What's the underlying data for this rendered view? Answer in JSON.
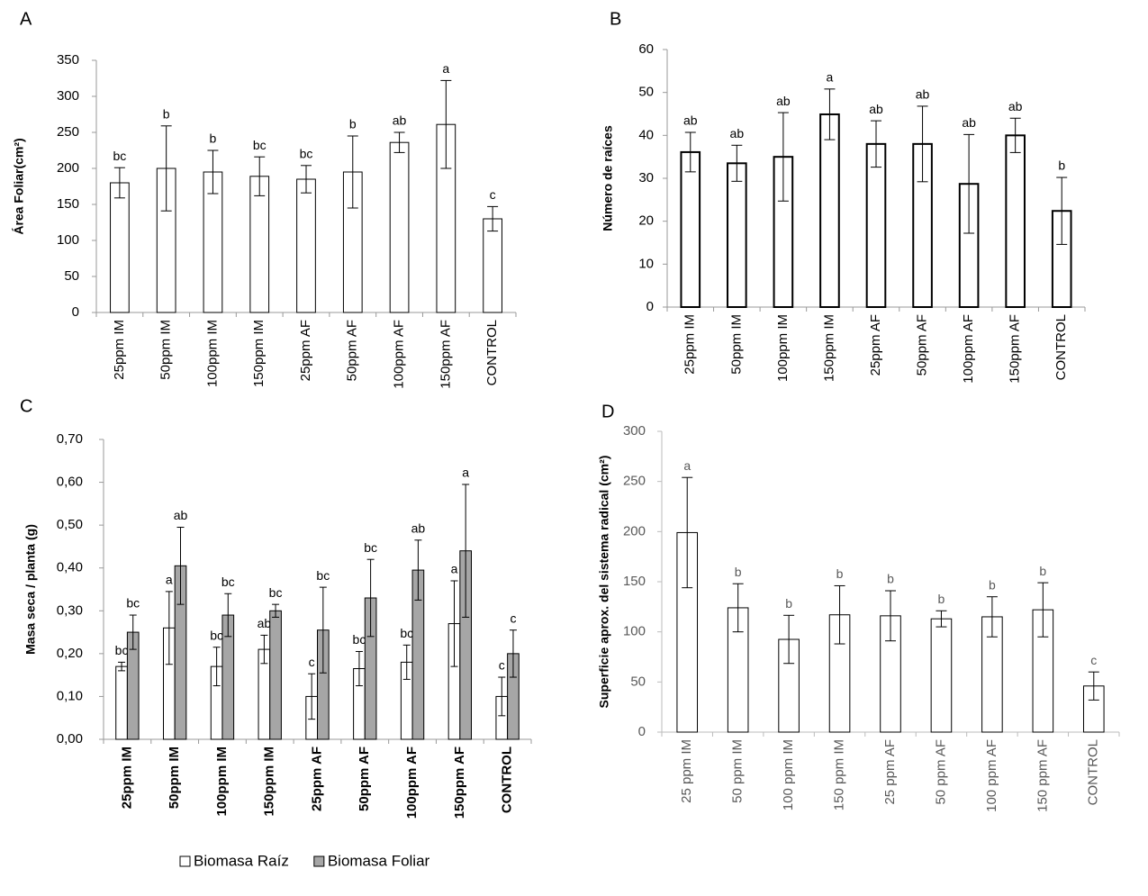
{
  "chart_data": [
    {
      "type": "bar",
      "title": "A",
      "y_label": "Área Foliar(cm²)",
      "categories": [
        "25ppm IM",
        "50ppm IM",
        "100ppm IM",
        "150ppm IM",
        "25ppm AF",
        "50ppm AF",
        "100ppm AF",
        "150ppm AF",
        "CONTROL"
      ],
      "series": [
        {
          "color": "#ffffff",
          "values": [
            180,
            200,
            195,
            189,
            185,
            195,
            236,
            261,
            130
          ],
          "errors": [
            21,
            59,
            30,
            27,
            19,
            50,
            14,
            61,
            17
          ],
          "labels": [
            "bc",
            "b",
            "b",
            "bc",
            "bc",
            "b",
            "ab",
            "a",
            "c"
          ]
        }
      ],
      "ylim": [
        0,
        350
      ],
      "yticks": [
        0,
        50,
        100,
        150,
        200,
        250,
        300,
        350
      ]
    },
    {
      "type": "bar",
      "title": "B",
      "y_label": "Número de raíces",
      "categories": [
        "25ppm IM",
        "50ppm IM",
        "100ppm IM",
        "150ppm IM",
        "25ppm AF",
        "50ppm AF",
        "100ppm AF",
        "150ppm AF",
        "CONTROL"
      ],
      "series": [
        {
          "color": "#ffffff",
          "values": [
            36.1,
            33.5,
            35,
            44.9,
            38,
            38,
            28.7,
            40,
            22.4
          ],
          "errors": [
            4.6,
            4.2,
            10.3,
            5.9,
            5.4,
            8.8,
            11.5,
            4,
            7.8
          ],
          "labels": [
            "ab",
            "ab",
            "ab",
            "a",
            "ab",
            "ab",
            "ab",
            "ab",
            "b"
          ]
        }
      ],
      "ylim": [
        0,
        60
      ],
      "yticks": [
        0,
        10,
        20,
        30,
        40,
        50,
        60
      ]
    },
    {
      "type": "bar",
      "title": "C",
      "y_label": "Masa seca / planta (g)",
      "categories": [
        "25ppm IM",
        "50ppm IM",
        "100ppm IM",
        "150ppm IM",
        "25ppm AF",
        "50ppm AF",
        "100ppm AF",
        "150ppm AF",
        "CONTROL"
      ],
      "series": [
        {
          "name": "Biomasa Raíz",
          "color": "#ffffff",
          "values": [
            0.17,
            0.26,
            0.17,
            0.21,
            0.1,
            0.165,
            0.18,
            0.27,
            0.1
          ],
          "errors": [
            0.01,
            0.085,
            0.045,
            0.033,
            0.053,
            0.04,
            0.04,
            0.1,
            0.045
          ],
          "labels": [
            "bc",
            "a",
            "bc",
            "ab",
            "c",
            "bc",
            "bc",
            "a",
            "c"
          ]
        },
        {
          "name": "Biomasa Foliar",
          "color": "#a6a6a6",
          "values": [
            0.25,
            0.405,
            0.29,
            0.3,
            0.255,
            0.33,
            0.395,
            0.44,
            0.2
          ],
          "errors": [
            0.04,
            0.09,
            0.05,
            0.015,
            0.1,
            0.09,
            0.07,
            0.155,
            0.055
          ],
          "labels": [
            "bc",
            "ab",
            "bc",
            "bc",
            "bc",
            "bc",
            "ab",
            "a",
            "c"
          ]
        }
      ],
      "ylim": [
        0,
        0.7
      ],
      "yticks": [
        {
          "value": 0,
          "label": "0,00"
        },
        {
          "value": 0.1,
          "label": "0,10"
        },
        {
          "value": 0.2,
          "label": "0,20"
        },
        {
          "value": 0.3,
          "label": "0,30"
        },
        {
          "value": 0.4,
          "label": "0,40"
        },
        {
          "value": 0.5,
          "label": "0,50"
        },
        {
          "value": 0.6,
          "label": "0,60"
        },
        {
          "value": 0.7,
          "label": "0,70"
        }
      ],
      "legend": "bottom"
    },
    {
      "type": "bar",
      "title": "D",
      "y_label": "Superficie aprox. del sistema radical (cm²)",
      "categories": [
        "25 ppm IM",
        "50 ppm IM",
        "100 ppm IM",
        "150 ppm IM",
        "25 ppm AF",
        "50 ppm  AF",
        "100 ppm AF",
        "150 ppm AF",
        "CONTROL"
      ],
      "series": [
        {
          "color": "#ffffff",
          "values": [
            199,
            124,
            92.5,
            117,
            116,
            113,
            115,
            122,
            46
          ],
          "errors": [
            55,
            24,
            24,
            29,
            25,
            8,
            20,
            27,
            14
          ],
          "labels": [
            "a",
            "b",
            "b",
            "b",
            "b",
            "b",
            "b",
            "b",
            "c"
          ]
        }
      ],
      "ylim": [
        0,
        300
      ],
      "yticks": [
        0,
        50,
        100,
        150,
        200,
        250,
        300
      ]
    }
  ]
}
